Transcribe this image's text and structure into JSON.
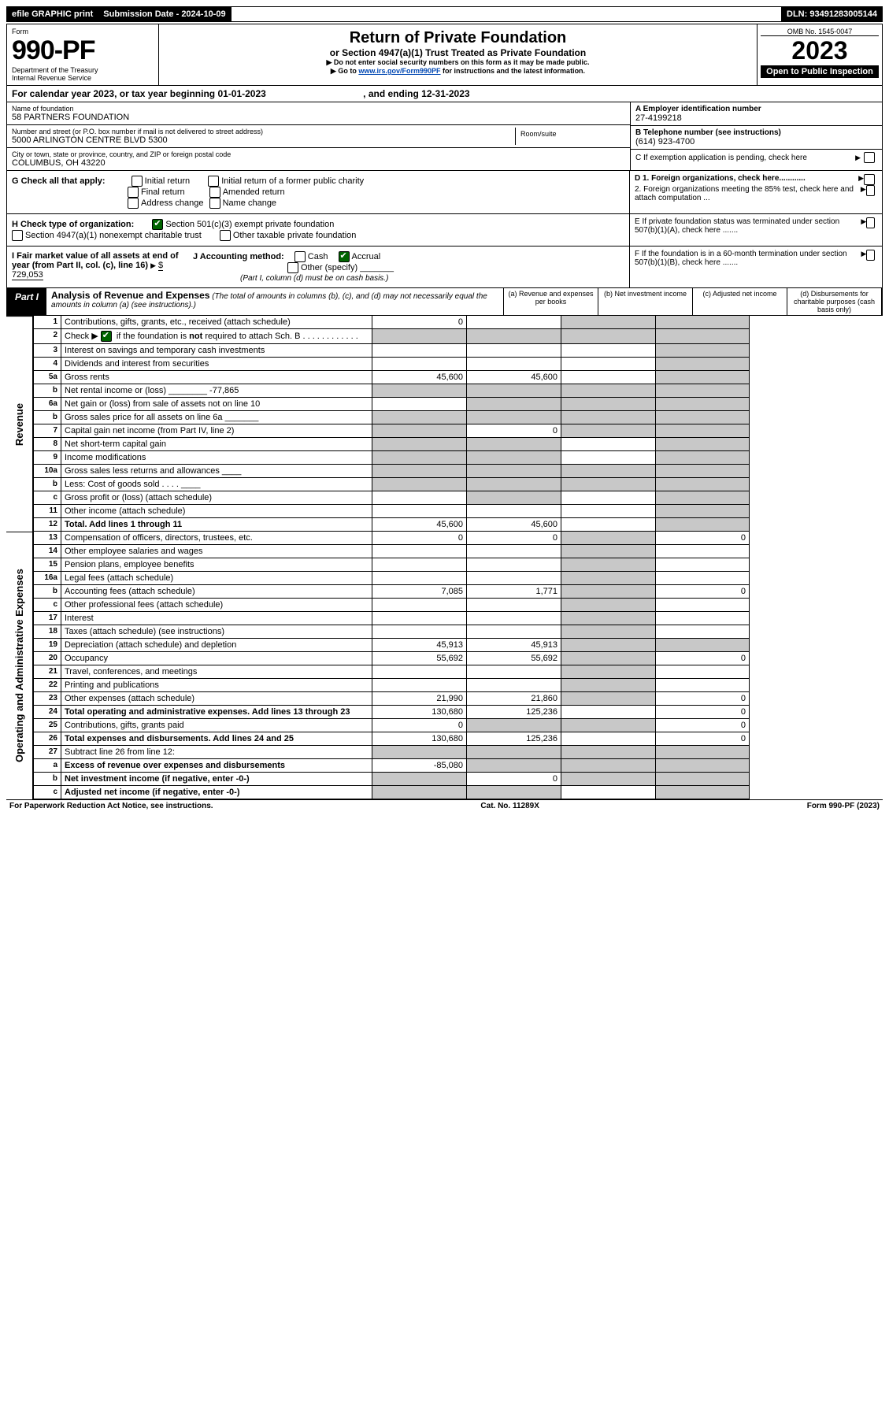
{
  "top_bar": {
    "efile": "efile GRAPHIC print",
    "submission_label": "Submission Date - 2024-10-09",
    "dln": "DLN: 93491283005144"
  },
  "header": {
    "form_label": "Form",
    "form_number": "990-PF",
    "dept": "Department of the Treasury",
    "irs": "Internal Revenue Service",
    "title": "Return of Private Foundation",
    "subtitle": "or Section 4947(a)(1) Trust Treated as Private Foundation",
    "note1": "▶ Do not enter social security numbers on this form as it may be made public.",
    "note2_pre": "▶ Go to ",
    "note2_link": "www.irs.gov/Form990PF",
    "note2_post": " for instructions and the latest information.",
    "omb": "OMB No. 1545-0047",
    "year": "2023",
    "open": "Open to Public Inspection"
  },
  "cal_year": {
    "text_a": "For calendar year 2023, or tax year beginning 01-01-2023",
    "text_b": ", and ending 12-31-2023"
  },
  "info": {
    "name_lbl": "Name of foundation",
    "name": "58 PARTNERS FOUNDATION",
    "addr_lbl": "Number and street (or P.O. box number if mail is not delivered to street address)",
    "addr": "5000 ARLINGTON CENTRE BLVD 5300",
    "room_lbl": "Room/suite",
    "city_lbl": "City or town, state or province, country, and ZIP or foreign postal code",
    "city": "COLUMBUS, OH  43220",
    "a_lbl": "A Employer identification number",
    "ein": "27-4199218",
    "b_lbl": "B Telephone number (see instructions)",
    "phone": "(614) 923-4700",
    "c_lbl": "C If exemption application is pending, check here"
  },
  "g": {
    "label": "G Check all that apply:",
    "opts": [
      "Initial return",
      "Final return",
      "Address change",
      "Initial return of a former public charity",
      "Amended return",
      "Name change"
    ]
  },
  "d": {
    "d1": "D 1. Foreign organizations, check here............",
    "d2": "2. Foreign organizations meeting the 85% test, check here and attach computation ..."
  },
  "h": {
    "label": "H Check type of organization:",
    "opt1": "Section 501(c)(3) exempt private foundation",
    "opt2": "Section 4947(a)(1) nonexempt charitable trust",
    "opt3": "Other taxable private foundation"
  },
  "e": "E  If private foundation status was terminated under section 507(b)(1)(A), check here .......",
  "i": {
    "label": "I Fair market value of all assets at end of year (from Part II, col. (c), line 16)",
    "val": "$  729,053"
  },
  "j": {
    "label": "J Accounting method:",
    "cash": "Cash",
    "accrual": "Accrual",
    "other": "Other (specify)",
    "note": "(Part I, column (d) must be on cash basis.)"
  },
  "f": "F  If the foundation is in a 60-month termination under section 507(b)(1)(B), check here .......",
  "part1": {
    "label": "Part I",
    "title": "Analysis of Revenue and Expenses",
    "note": "(The total of amounts in columns (b), (c), and (d) may not necessarily equal the amounts in column (a) (see instructions).)",
    "col_a": "(a)   Revenue and expenses per books",
    "col_b": "(b)   Net investment income",
    "col_c": "(c)   Adjusted net income",
    "col_d": "(d)   Disbursements for charitable purposes (cash basis only)"
  },
  "side_rev": "Revenue",
  "side_exp": "Operating and Administrative Expenses",
  "rows": [
    {
      "n": "1",
      "d": "Contributions, gifts, grants, etc., received (attach schedule)",
      "a": "0",
      "b": "",
      "c": "g",
      "dd": "g"
    },
    {
      "n": "2",
      "d": "Check ▶ [✔] if the foundation is not required to attach Sch. B",
      "a": "g",
      "b": "g",
      "c": "g",
      "dd": "g",
      "bold": false,
      "check": true
    },
    {
      "n": "3",
      "d": "Interest on savings and temporary cash investments",
      "a": "",
      "b": "",
      "c": "",
      "dd": "g"
    },
    {
      "n": "4",
      "d": "Dividends and interest from securities",
      "a": "",
      "b": "",
      "c": "",
      "dd": "g"
    },
    {
      "n": "5a",
      "d": "Gross rents",
      "a": "45,600",
      "b": "45,600",
      "c": "",
      "dd": "g"
    },
    {
      "n": "b",
      "d": "Net rental income or (loss) ________ -77,865",
      "a": "g",
      "b": "g",
      "c": "g",
      "dd": "g"
    },
    {
      "n": "6a",
      "d": "Net gain or (loss) from sale of assets not on line 10",
      "a": "",
      "b": "g",
      "c": "g",
      "dd": "g"
    },
    {
      "n": "b",
      "d": "Gross sales price for all assets on line 6a _______",
      "a": "g",
      "b": "g",
      "c": "g",
      "dd": "g"
    },
    {
      "n": "7",
      "d": "Capital gain net income (from Part IV, line 2)",
      "a": "g",
      "b": "0",
      "c": "g",
      "dd": "g"
    },
    {
      "n": "8",
      "d": "Net short-term capital gain",
      "a": "g",
      "b": "g",
      "c": "",
      "dd": "g"
    },
    {
      "n": "9",
      "d": "Income modifications",
      "a": "g",
      "b": "g",
      "c": "",
      "dd": "g"
    },
    {
      "n": "10a",
      "d": "Gross sales less returns and allowances ____",
      "a": "g",
      "b": "g",
      "c": "g",
      "dd": "g"
    },
    {
      "n": "b",
      "d": "Less: Cost of goods sold   . . . . ____",
      "a": "g",
      "b": "g",
      "c": "g",
      "dd": "g"
    },
    {
      "n": "c",
      "d": "Gross profit or (loss) (attach schedule)",
      "a": "",
      "b": "g",
      "c": "",
      "dd": "g"
    },
    {
      "n": "11",
      "d": "Other income (attach schedule)",
      "a": "",
      "b": "",
      "c": "",
      "dd": "g"
    },
    {
      "n": "12",
      "d": "Total. Add lines 1 through 11",
      "a": "45,600",
      "b": "45,600",
      "c": "",
      "dd": "g",
      "bold": true
    }
  ],
  "exp_rows": [
    {
      "n": "13",
      "d": "Compensation of officers, directors, trustees, etc.",
      "a": "0",
      "b": "0",
      "c": "g",
      "dd": "0"
    },
    {
      "n": "14",
      "d": "Other employee salaries and wages",
      "a": "",
      "b": "",
      "c": "g",
      "dd": ""
    },
    {
      "n": "15",
      "d": "Pension plans, employee benefits",
      "a": "",
      "b": "",
      "c": "g",
      "dd": ""
    },
    {
      "n": "16a",
      "d": "Legal fees (attach schedule)",
      "a": "",
      "b": "",
      "c": "g",
      "dd": ""
    },
    {
      "n": "b",
      "d": "Accounting fees (attach schedule)",
      "a": "7,085",
      "b": "1,771",
      "c": "g",
      "dd": "0"
    },
    {
      "n": "c",
      "d": "Other professional fees (attach schedule)",
      "a": "",
      "b": "",
      "c": "g",
      "dd": ""
    },
    {
      "n": "17",
      "d": "Interest",
      "a": "",
      "b": "",
      "c": "g",
      "dd": ""
    },
    {
      "n": "18",
      "d": "Taxes (attach schedule) (see instructions)",
      "a": "",
      "b": "",
      "c": "g",
      "dd": ""
    },
    {
      "n": "19",
      "d": "Depreciation (attach schedule) and depletion",
      "a": "45,913",
      "b": "45,913",
      "c": "g",
      "dd": "g"
    },
    {
      "n": "20",
      "d": "Occupancy",
      "a": "55,692",
      "b": "55,692",
      "c": "g",
      "dd": "0"
    },
    {
      "n": "21",
      "d": "Travel, conferences, and meetings",
      "a": "",
      "b": "",
      "c": "g",
      "dd": ""
    },
    {
      "n": "22",
      "d": "Printing and publications",
      "a": "",
      "b": "",
      "c": "g",
      "dd": ""
    },
    {
      "n": "23",
      "d": "Other expenses (attach schedule)",
      "a": "21,990",
      "b": "21,860",
      "c": "g",
      "dd": "0"
    },
    {
      "n": "24",
      "d": "Total operating and administrative expenses. Add lines 13 through 23",
      "a": "130,680",
      "b": "125,236",
      "c": "",
      "dd": "0",
      "bold": true
    },
    {
      "n": "25",
      "d": "Contributions, gifts, grants paid",
      "a": "0",
      "b": "g",
      "c": "g",
      "dd": "0"
    },
    {
      "n": "26",
      "d": "Total expenses and disbursements. Add lines 24 and 25",
      "a": "130,680",
      "b": "125,236",
      "c": "",
      "dd": "0",
      "bold": true
    },
    {
      "n": "27",
      "d": "Subtract line 26 from line 12:",
      "a": "g",
      "b": "g",
      "c": "g",
      "dd": "g"
    },
    {
      "n": "a",
      "d": "Excess of revenue over expenses and disbursements",
      "a": "-85,080",
      "b": "g",
      "c": "g",
      "dd": "g",
      "bold": true
    },
    {
      "n": "b",
      "d": "Net investment income (if negative, enter -0-)",
      "a": "g",
      "b": "0",
      "c": "g",
      "dd": "g",
      "bold": true
    },
    {
      "n": "c",
      "d": "Adjusted net income (if negative, enter -0-)",
      "a": "g",
      "b": "g",
      "c": "",
      "dd": "g",
      "bold": true
    }
  ],
  "footer": {
    "left": "For Paperwork Reduction Act Notice, see instructions.",
    "mid": "Cat. No. 11289X",
    "right": "Form 990-PF (2023)"
  },
  "colors": {
    "grey": "#c8c8c8",
    "link": "#0047b3",
    "check": "#006400"
  }
}
